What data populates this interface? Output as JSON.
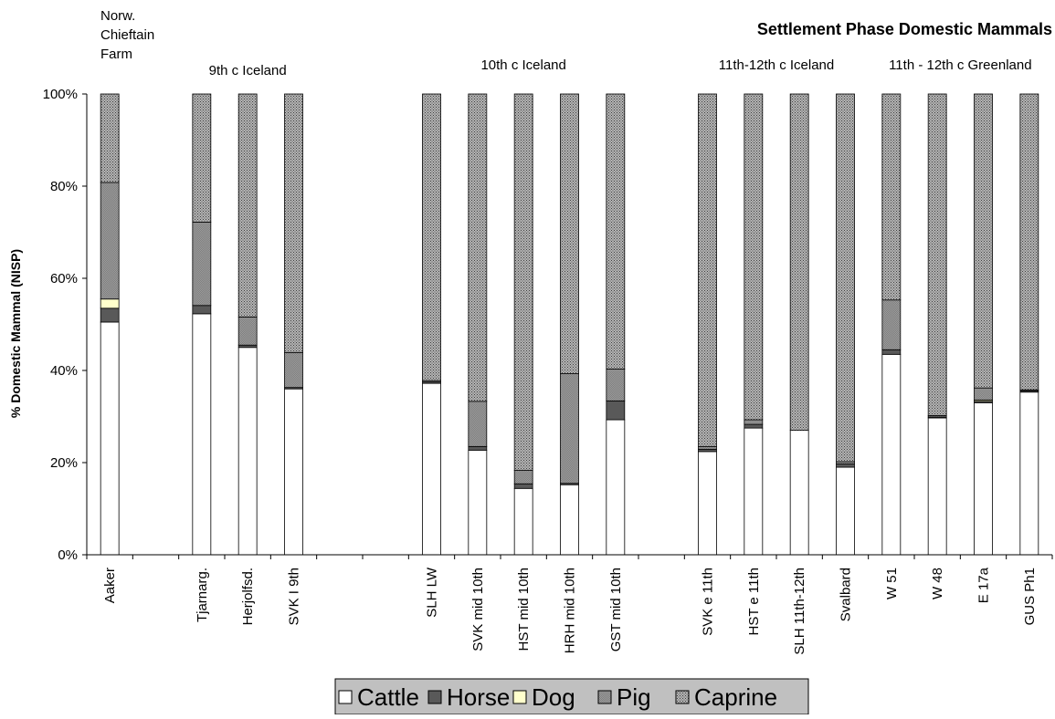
{
  "chart_data": {
    "type": "bar",
    "stacked": true,
    "percent_stacked": true,
    "title": "Settlement Phase Domestic Mammals",
    "ylabel": "% Domestic Mammal (NISP)",
    "xlabel": "",
    "ylim": [
      0,
      100
    ],
    "yticks": [
      "0%",
      "20%",
      "40%",
      "60%",
      "80%",
      "100%"
    ],
    "grid": false,
    "legend_position": "bottom",
    "group_labels": [
      "Norw.\nChieftain\nFarm",
      "9th c Iceland",
      "10th c Iceland",
      "11th-12th c Iceland",
      "11th - 12th c Greenland"
    ],
    "groups": [
      {
        "label": "Norw.\nChieftain\nFarm",
        "categories": [
          "Aaker"
        ]
      },
      {
        "label": "9th c Iceland",
        "categories": [
          "Tjarnarg.",
          "Herjolfsd.",
          "SVK I 9th"
        ]
      },
      {
        "label": "10th c Iceland",
        "categories": [
          "SLH LW",
          "SVK mid 10th",
          "HST mid 10th",
          "HRH mid 10th",
          "GST mid 10th"
        ]
      },
      {
        "label": "11th-12th c Iceland",
        "categories": [
          "SVK e 11th",
          "HST e 11th",
          "SLH 11th-12th",
          "Svalbard"
        ]
      },
      {
        "label": "11th - 12th c Greenland",
        "categories": [
          "W 51",
          "W 48",
          "E 17a",
          "GUS Ph1"
        ]
      }
    ],
    "categories": [
      "Aaker",
      "Tjarnarg.",
      "Herjolfsd.",
      "SVK I 9th",
      "SLH LW",
      "SVK mid 10th",
      "HST mid 10th",
      "HRH mid 10th",
      "GST mid 10th",
      "SVK e 11th",
      "HST e 11th",
      "SLH 11th-12th",
      "Svalbard",
      "W 51",
      "W 48",
      "E 17a",
      "GUS Ph1"
    ],
    "series": [
      {
        "name": "Cattle",
        "color": "#ffffff",
        "values": [
          50.5,
          52.3,
          45.0,
          36.0,
          37.2,
          22.7,
          14.4,
          15.2,
          29.3,
          22.4,
          27.5,
          27.0,
          19.0,
          43.5,
          29.7,
          33.0,
          35.3
        ]
      },
      {
        "name": "Horse",
        "color": "#595959",
        "values": [
          3.0,
          1.8,
          0.5,
          0.3,
          0.3,
          0.8,
          1.0,
          0.3,
          4.1,
          0.5,
          0.8,
          0.0,
          0.7,
          1.0,
          0.2,
          0.3,
          0.3
        ]
      },
      {
        "name": "Dog",
        "color": "#ffffcc",
        "values": [
          2.0,
          0.0,
          0.0,
          0.0,
          0.0,
          0.0,
          0.0,
          0.0,
          0.0,
          0.0,
          0.0,
          0.0,
          0.0,
          0.0,
          0.0,
          0.3,
          0.0
        ]
      },
      {
        "name": "Pig",
        "color": "#8c8c8c",
        "values": [
          25.3,
          18.1,
          6.1,
          7.6,
          0.3,
          9.8,
          2.9,
          23.8,
          6.9,
          0.6,
          1.0,
          0.0,
          0.5,
          10.8,
          0.3,
          2.6,
          0.2
        ]
      },
      {
        "name": "Caprine",
        "color": "#9a9a9a",
        "values": [
          19.2,
          27.8,
          48.4,
          56.1,
          62.2,
          66.7,
          81.7,
          60.7,
          59.7,
          76.5,
          70.7,
          73.0,
          79.8,
          44.7,
          69.8,
          63.8,
          64.2
        ]
      }
    ]
  }
}
